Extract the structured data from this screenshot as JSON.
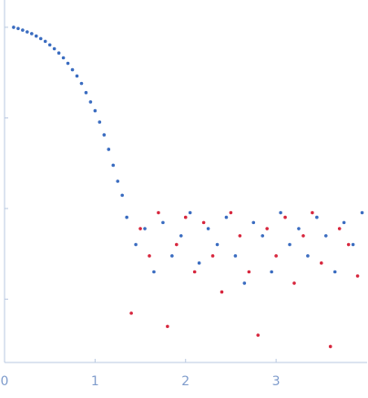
{
  "chart_data": {
    "type": "scatter",
    "log_y": true,
    "xlim": [
      0,
      4
    ],
    "xticks": [
      0,
      1,
      2,
      3
    ],
    "ylim": [
      0.0002,
      2
    ],
    "yticks": [
      1,
      0.1,
      0.01,
      0.001
    ],
    "series": [
      {
        "color": "#3a6cc0",
        "x": [
          0.1,
          0.15,
          0.2,
          0.25,
          0.3,
          0.35,
          0.4,
          0.45,
          0.5,
          0.55,
          0.6,
          0.65,
          0.7,
          0.75,
          0.8,
          0.85,
          0.9,
          0.95,
          1.0,
          1.05,
          1.1,
          1.15,
          1.2,
          1.25,
          1.3,
          1.35,
          1.45,
          1.55,
          1.65,
          1.75,
          1.85,
          1.95,
          2.05,
          2.15,
          2.25,
          2.35,
          2.45,
          2.55,
          2.65,
          2.75,
          2.85,
          2.95,
          3.05,
          3.15,
          3.25,
          3.35,
          3.45,
          3.55,
          3.65,
          3.75,
          3.85,
          3.95
        ],
        "values": [
          1.0,
          0.97,
          0.93,
          0.89,
          0.85,
          0.8,
          0.75,
          0.7,
          0.64,
          0.58,
          0.52,
          0.46,
          0.4,
          0.34,
          0.29,
          0.24,
          0.19,
          0.15,
          0.12,
          0.09,
          0.065,
          0.045,
          0.03,
          0.02,
          0.014,
          0.008,
          0.004,
          0.006,
          0.002,
          0.007,
          0.003,
          0.005,
          0.009,
          0.0025,
          0.006,
          0.004,
          0.008,
          0.003,
          0.0015,
          0.007,
          0.005,
          0.002,
          0.009,
          0.004,
          0.006,
          0.003,
          0.008,
          0.005,
          0.002,
          0.007,
          0.004,
          0.009
        ]
      },
      {
        "color": "#d7263d",
        "x": [
          1.4,
          1.5,
          1.6,
          1.7,
          1.8,
          1.9,
          2.0,
          2.1,
          2.2,
          2.3,
          2.4,
          2.5,
          2.6,
          2.7,
          2.8,
          2.9,
          3.0,
          3.1,
          3.2,
          3.3,
          3.4,
          3.5,
          3.6,
          3.7,
          3.8,
          3.9
        ],
        "values": [
          0.0007,
          0.006,
          0.003,
          0.009,
          0.0005,
          0.004,
          0.008,
          0.002,
          0.007,
          0.003,
          0.0012,
          0.009,
          0.005,
          0.002,
          0.0004,
          0.006,
          0.003,
          0.008,
          0.0015,
          0.005,
          0.009,
          0.0025,
          0.0003,
          0.006,
          0.004,
          0.0018
        ]
      }
    ]
  }
}
